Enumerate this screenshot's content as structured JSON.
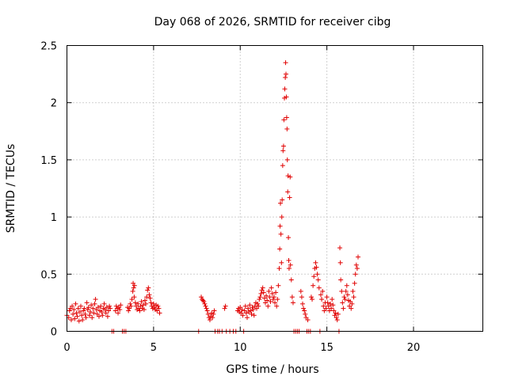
{
  "chart_data": {
    "type": "scatter",
    "title": "Day 068 of 2026, SRMTID for receiver cibg",
    "xlabel": "GPS time / hours",
    "ylabel": "SRMTID / TECUs",
    "xlim": [
      0,
      24
    ],
    "ylim": [
      0,
      2.5
    ],
    "xticks": [
      0,
      5,
      10,
      15,
      20
    ],
    "yticks": [
      0,
      0.5,
      1,
      1.5,
      2,
      2.5
    ],
    "xtick_labels": [
      "0",
      "5",
      "10",
      "15",
      "20"
    ],
    "ytick_labels": [
      "0",
      "0.5",
      "1",
      "1.5",
      "2",
      "2.5"
    ],
    "grid": true,
    "marker": "+",
    "color": "#e00000",
    "series": [
      {
        "name": "SRMTID",
        "points": [
          [
            0.0,
            0.14
          ],
          [
            0.1,
            0.12
          ],
          [
            0.15,
            0.18
          ],
          [
            0.2,
            0.2
          ],
          [
            0.25,
            0.1
          ],
          [
            0.3,
            0.22
          ],
          [
            0.35,
            0.15
          ],
          [
            0.4,
            0.19
          ],
          [
            0.45,
            0.11
          ],
          [
            0.5,
            0.24
          ],
          [
            0.55,
            0.16
          ],
          [
            0.6,
            0.13
          ],
          [
            0.65,
            0.2
          ],
          [
            0.7,
            0.09
          ],
          [
            0.75,
            0.17
          ],
          [
            0.8,
            0.22
          ],
          [
            0.85,
            0.14
          ],
          [
            0.9,
            0.1
          ],
          [
            0.95,
            0.18
          ],
          [
            1.0,
            0.2
          ],
          [
            1.05,
            0.15
          ],
          [
            1.1,
            0.12
          ],
          [
            1.15,
            0.25
          ],
          [
            1.2,
            0.19
          ],
          [
            1.25,
            0.21
          ],
          [
            1.3,
            0.14
          ],
          [
            1.35,
            0.17
          ],
          [
            1.4,
            0.23
          ],
          [
            1.45,
            0.12
          ],
          [
            1.5,
            0.2
          ],
          [
            1.55,
            0.16
          ],
          [
            1.6,
            0.24
          ],
          [
            1.65,
            0.28
          ],
          [
            1.7,
            0.19
          ],
          [
            1.75,
            0.15
          ],
          [
            1.8,
            0.21
          ],
          [
            1.85,
            0.13
          ],
          [
            1.9,
            0.18
          ],
          [
            1.95,
            0.22
          ],
          [
            2.0,
            0.17
          ],
          [
            2.05,
            0.14
          ],
          [
            2.1,
            0.2
          ],
          [
            2.15,
            0.24
          ],
          [
            2.2,
            0.19
          ],
          [
            2.25,
            0.16
          ],
          [
            2.3,
            0.21
          ],
          [
            2.35,
            0.13
          ],
          [
            2.4,
            0.18
          ],
          [
            2.45,
            0.22
          ],
          [
            2.5,
            0.2
          ],
          [
            2.6,
            0.0
          ],
          [
            2.7,
            0.0
          ],
          [
            2.8,
            0.18
          ],
          [
            2.85,
            0.22
          ],
          [
            2.9,
            0.2
          ],
          [
            2.95,
            0.16
          ],
          [
            3.0,
            0.21
          ],
          [
            3.05,
            0.19
          ],
          [
            3.1,
            0.23
          ],
          [
            3.2,
            0.0
          ],
          [
            3.3,
            0.0
          ],
          [
            3.4,
            0.0
          ],
          [
            3.5,
            0.21
          ],
          [
            3.55,
            0.18
          ],
          [
            3.6,
            0.2
          ],
          [
            3.65,
            0.24
          ],
          [
            3.7,
            0.22
          ],
          [
            3.75,
            0.28
          ],
          [
            3.8,
            0.35
          ],
          [
            3.82,
            0.42
          ],
          [
            3.85,
            0.38
          ],
          [
            3.88,
            0.3
          ],
          [
            3.9,
            0.4
          ],
          [
            3.95,
            0.25
          ],
          [
            4.0,
            0.22
          ],
          [
            4.05,
            0.19
          ],
          [
            4.1,
            0.24
          ],
          [
            4.15,
            0.2
          ],
          [
            4.2,
            0.18
          ],
          [
            4.25,
            0.22
          ],
          [
            4.3,
            0.26
          ],
          [
            4.35,
            0.2
          ],
          [
            4.4,
            0.23
          ],
          [
            4.45,
            0.19
          ],
          [
            4.5,
            0.27
          ],
          [
            4.55,
            0.24
          ],
          [
            4.6,
            0.3
          ],
          [
            4.65,
            0.36
          ],
          [
            4.7,
            0.38
          ],
          [
            4.75,
            0.32
          ],
          [
            4.8,
            0.29
          ],
          [
            4.85,
            0.25
          ],
          [
            4.9,
            0.22
          ],
          [
            4.95,
            0.2
          ],
          [
            5.0,
            0.24
          ],
          [
            5.05,
            0.21
          ],
          [
            5.1,
            0.19
          ],
          [
            5.15,
            0.23
          ],
          [
            5.2,
            0.18
          ],
          [
            5.25,
            0.22
          ],
          [
            5.3,
            0.2
          ],
          [
            5.35,
            0.16
          ],
          [
            7.6,
            0.0
          ],
          [
            7.75,
            0.3
          ],
          [
            7.8,
            0.28
          ],
          [
            7.85,
            0.27
          ],
          [
            7.9,
            0.26
          ],
          [
            7.95,
            0.24
          ],
          [
            8.0,
            0.22
          ],
          [
            8.05,
            0.2
          ],
          [
            8.1,
            0.18
          ],
          [
            8.15,
            0.15
          ],
          [
            8.2,
            0.12
          ],
          [
            8.25,
            0.1
          ],
          [
            8.3,
            0.13
          ],
          [
            8.35,
            0.16
          ],
          [
            8.4,
            0.12
          ],
          [
            8.45,
            0.15
          ],
          [
            8.5,
            0.18
          ],
          [
            8.55,
            0.0
          ],
          [
            8.7,
            0.0
          ],
          [
            8.8,
            0.0
          ],
          [
            8.95,
            0.0
          ],
          [
            9.1,
            0.2
          ],
          [
            9.15,
            0.22
          ],
          [
            9.2,
            0.0
          ],
          [
            9.4,
            0.0
          ],
          [
            9.6,
            0.0
          ],
          [
            9.75,
            0.0
          ],
          [
            9.85,
            0.18
          ],
          [
            9.9,
            0.2
          ],
          [
            9.95,
            0.17
          ],
          [
            10.0,
            0.21
          ],
          [
            10.05,
            0.16
          ],
          [
            10.1,
            0.19
          ],
          [
            10.15,
            0.14
          ],
          [
            10.2,
            0.0
          ],
          [
            10.25,
            0.18
          ],
          [
            10.3,
            0.22
          ],
          [
            10.35,
            0.16
          ],
          [
            10.4,
            0.12
          ],
          [
            10.45,
            0.2
          ],
          [
            10.5,
            0.17
          ],
          [
            10.55,
            0.23
          ],
          [
            10.6,
            0.18
          ],
          [
            10.65,
            0.15
          ],
          [
            10.7,
            0.21
          ],
          [
            10.75,
            0.19
          ],
          [
            10.8,
            0.14
          ],
          [
            10.85,
            0.22
          ],
          [
            10.9,
            0.25
          ],
          [
            10.95,
            0.2
          ],
          [
            11.0,
            0.24
          ],
          [
            11.05,
            0.22
          ],
          [
            11.1,
            0.28
          ],
          [
            11.15,
            0.3
          ],
          [
            11.2,
            0.33
          ],
          [
            11.25,
            0.36
          ],
          [
            11.3,
            0.38
          ],
          [
            11.35,
            0.34
          ],
          [
            11.4,
            0.29
          ],
          [
            11.45,
            0.25
          ],
          [
            11.5,
            0.31
          ],
          [
            11.55,
            0.27
          ],
          [
            11.6,
            0.22
          ],
          [
            11.65,
            0.35
          ],
          [
            11.7,
            0.3
          ],
          [
            11.75,
            0.26
          ],
          [
            11.8,
            0.38
          ],
          [
            11.85,
            0.33
          ],
          [
            11.9,
            0.28
          ],
          [
            11.95,
            0.3
          ],
          [
            12.0,
            0.25
          ],
          [
            12.05,
            0.34
          ],
          [
            12.1,
            0.22
          ],
          [
            12.15,
            0.28
          ],
          [
            12.2,
            0.4
          ],
          [
            12.25,
            0.55
          ],
          [
            12.28,
            0.72
          ],
          [
            12.3,
            0.92
          ],
          [
            12.32,
            1.12
          ],
          [
            12.35,
            0.85
          ],
          [
            12.38,
            0.6
          ],
          [
            12.4,
            1.0
          ],
          [
            12.42,
            1.15
          ],
          [
            12.45,
            1.45
          ],
          [
            12.47,
            1.58
          ],
          [
            12.5,
            1.62
          ],
          [
            12.52,
            1.85
          ],
          [
            12.55,
            2.04
          ],
          [
            12.57,
            2.12
          ],
          [
            12.6,
            2.22
          ],
          [
            12.62,
            2.35
          ],
          [
            12.64,
            2.25
          ],
          [
            12.66,
            2.05
          ],
          [
            12.68,
            1.87
          ],
          [
            12.7,
            1.77
          ],
          [
            12.72,
            1.5
          ],
          [
            12.74,
            1.22
          ],
          [
            12.76,
            1.36
          ],
          [
            12.78,
            0.82
          ],
          [
            12.8,
            0.62
          ],
          [
            12.82,
            0.55
          ],
          [
            12.85,
            1.17
          ],
          [
            12.88,
            1.35
          ],
          [
            12.9,
            0.58
          ],
          [
            12.95,
            0.45
          ],
          [
            13.0,
            0.3
          ],
          [
            13.05,
            0.25
          ],
          [
            13.1,
            0.0
          ],
          [
            13.2,
            0.0
          ],
          [
            13.3,
            0.0
          ],
          [
            13.4,
            0.0
          ],
          [
            13.5,
            0.35
          ],
          [
            13.55,
            0.3
          ],
          [
            13.6,
            0.24
          ],
          [
            13.65,
            0.2
          ],
          [
            13.7,
            0.18
          ],
          [
            13.75,
            0.15
          ],
          [
            13.8,
            0.12
          ],
          [
            13.85,
            0.0
          ],
          [
            13.9,
            0.1
          ],
          [
            13.95,
            0.0
          ],
          [
            14.05,
            0.0
          ],
          [
            14.1,
            0.3
          ],
          [
            14.15,
            0.28
          ],
          [
            14.2,
            0.4
          ],
          [
            14.25,
            0.48
          ],
          [
            14.3,
            0.55
          ],
          [
            14.35,
            0.6
          ],
          [
            14.4,
            0.56
          ],
          [
            14.45,
            0.5
          ],
          [
            14.5,
            0.45
          ],
          [
            14.55,
            0.38
          ],
          [
            14.6,
            0.0
          ],
          [
            14.65,
            0.32
          ],
          [
            14.7,
            0.28
          ],
          [
            14.75,
            0.35
          ],
          [
            14.8,
            0.22
          ],
          [
            14.85,
            0.18
          ],
          [
            14.9,
            0.25
          ],
          [
            14.95,
            0.2
          ],
          [
            15.0,
            0.3
          ],
          [
            15.05,
            0.25
          ],
          [
            15.1,
            0.22
          ],
          [
            15.15,
            0.18
          ],
          [
            15.2,
            0.24
          ],
          [
            15.25,
            0.2
          ],
          [
            15.3,
            0.28
          ],
          [
            15.35,
            0.23
          ],
          [
            15.4,
            0.18
          ],
          [
            15.45,
            0.14
          ],
          [
            15.5,
            0.16
          ],
          [
            15.55,
            0.12
          ],
          [
            15.6,
            0.1
          ],
          [
            15.65,
            0.15
          ],
          [
            15.7,
            0.0
          ],
          [
            15.75,
            0.73
          ],
          [
            15.78,
            0.6
          ],
          [
            15.8,
            0.45
          ],
          [
            15.85,
            0.35
          ],
          [
            15.9,
            0.25
          ],
          [
            15.95,
            0.2
          ],
          [
            16.0,
            0.3
          ],
          [
            16.05,
            0.28
          ],
          [
            16.1,
            0.35
          ],
          [
            16.15,
            0.4
          ],
          [
            16.2,
            0.32
          ],
          [
            16.25,
            0.27
          ],
          [
            16.3,
            0.22
          ],
          [
            16.35,
            0.26
          ],
          [
            16.4,
            0.2
          ],
          [
            16.45,
            0.24
          ],
          [
            16.5,
            0.35
          ],
          [
            16.55,
            0.3
          ],
          [
            16.6,
            0.42
          ],
          [
            16.65,
            0.5
          ],
          [
            16.7,
            0.58
          ],
          [
            16.75,
            0.55
          ],
          [
            16.8,
            0.65
          ]
        ]
      }
    ]
  }
}
